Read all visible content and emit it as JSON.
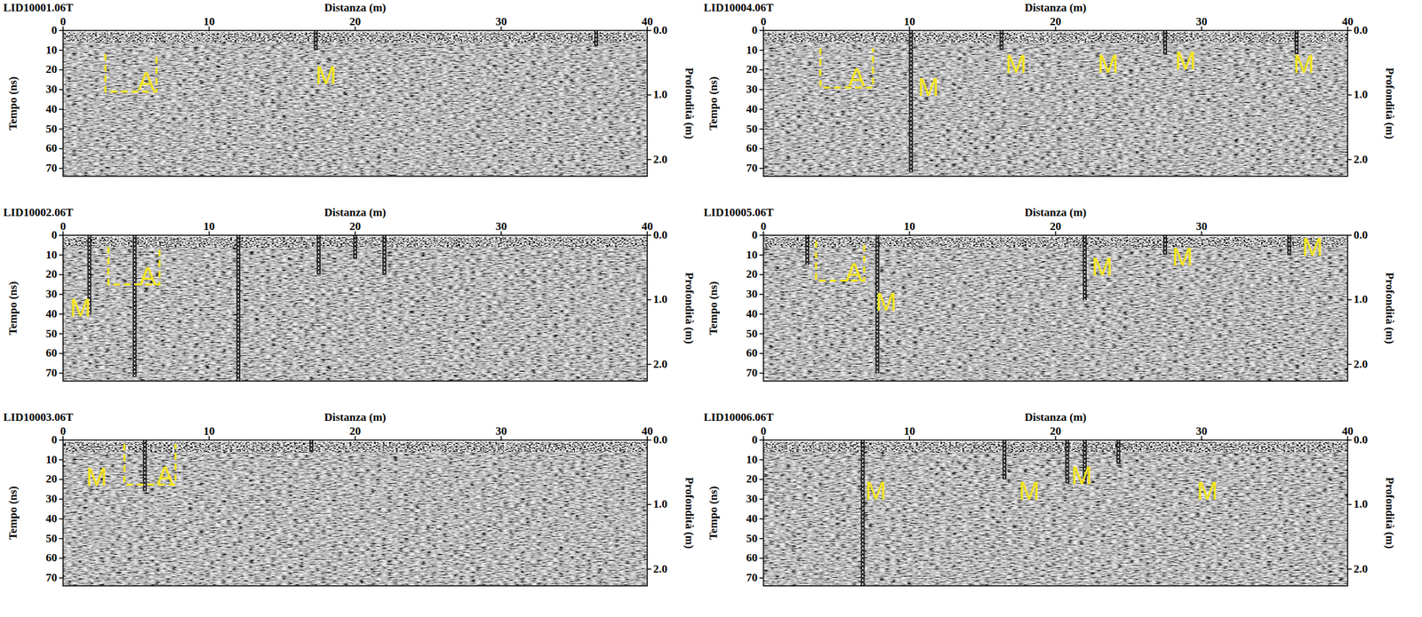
{
  "chart_data": [
    {
      "type": "radargram",
      "title": "LID10001.06T",
      "x_label": "Distanza (m)",
      "y_label": "Tempo (ns)",
      "y2_label": "Profondità (m)",
      "xlim": [
        0,
        40
      ],
      "xticks": [
        0,
        10,
        20,
        30,
        40
      ],
      "ylim": [
        0,
        74
      ],
      "yticks": [
        0,
        10,
        20,
        30,
        40,
        50,
        60,
        70
      ],
      "y2lim": [
        0,
        2.26
      ],
      "y2ticks": [
        {
          "value": 0,
          "label": "0.0"
        },
        {
          "value": 1,
          "label": "1.0"
        },
        {
          "value": 2,
          "label": "2.0"
        }
      ],
      "annotations": [
        {
          "text": "A",
          "x": 5.7,
          "y": 27,
          "box": [
            2.9,
            6.4,
            12,
            31
          ]
        },
        {
          "text": "M",
          "x": 18.0,
          "y": 24
        }
      ],
      "reflections": [
        {
          "x": 17.3,
          "y0": 0,
          "y1": 10
        },
        {
          "x": 36.5,
          "y0": 0,
          "y1": 8
        }
      ]
    },
    {
      "type": "radargram",
      "title": "LID10002.06T",
      "x_label": "Distanza (m)",
      "y_label": "Tempo (ns)",
      "y2_label": "Profondità (m)",
      "xlim": [
        0,
        40
      ],
      "xticks": [
        0,
        10,
        20,
        30,
        40
      ],
      "ylim": [
        0,
        74
      ],
      "yticks": [
        0,
        10,
        20,
        30,
        40,
        50,
        60,
        70
      ],
      "y2lim": [
        0,
        2.26
      ],
      "y2ticks": [
        {
          "value": 0,
          "label": "0.0"
        },
        {
          "value": 1,
          "label": "1.0"
        },
        {
          "value": 2,
          "label": "2.0"
        }
      ],
      "annotations": [
        {
          "text": "A",
          "x": 5.8,
          "y": 22,
          "box": [
            3.1,
            6.6,
            6,
            25
          ]
        },
        {
          "text": "M",
          "x": 1.2,
          "y": 38
        }
      ],
      "reflections": [
        {
          "x": 1.8,
          "y0": 0,
          "y1": 40
        },
        {
          "x": 4.9,
          "y0": 0,
          "y1": 72
        },
        {
          "x": 12.0,
          "y0": 0,
          "y1": 74
        },
        {
          "x": 17.5,
          "y0": 0,
          "y1": 20
        },
        {
          "x": 20.0,
          "y0": 0,
          "y1": 12
        },
        {
          "x": 22.0,
          "y0": 0,
          "y1": 20
        }
      ]
    },
    {
      "type": "radargram",
      "title": "LID10003.06T",
      "x_label": "Distanza (m)",
      "y_label": "Tempo (ns)",
      "y2_label": "Profondità (m)",
      "xlim": [
        0,
        40
      ],
      "xticks": [
        0,
        10,
        20,
        30,
        40
      ],
      "ylim": [
        0,
        74
      ],
      "yticks": [
        0,
        10,
        20,
        30,
        40,
        50,
        60,
        70
      ],
      "y2lim": [
        0,
        2.26
      ],
      "y2ticks": [
        {
          "value": 0,
          "label": "0.0"
        },
        {
          "value": 1,
          "label": "1.0"
        },
        {
          "value": 2,
          "label": "2.0"
        }
      ],
      "annotations": [
        {
          "text": "A",
          "x": 7.0,
          "y": 19,
          "box": [
            4.2,
            7.7,
            2,
            22.6
          ]
        },
        {
          "text": "M",
          "x": 2.3,
          "y": 20
        }
      ],
      "reflections": [
        {
          "x": 5.6,
          "y0": 0,
          "y1": 26
        },
        {
          "x": 17.0,
          "y0": 0,
          "y1": 6
        }
      ]
    },
    {
      "type": "radargram",
      "title": "LID10004.06T",
      "x_label": "Distanza (m)",
      "y_label": "Tempo (ns)",
      "y2_label": "Profondità (m)",
      "xlim": [
        0,
        40
      ],
      "xticks": [
        0,
        10,
        20,
        30,
        40
      ],
      "ylim": [
        0,
        74
      ],
      "yticks": [
        0,
        10,
        20,
        30,
        40,
        50,
        60,
        70
      ],
      "y2lim": [
        0,
        2.26
      ],
      "y2ticks": [
        {
          "value": 0,
          "label": "0.0"
        },
        {
          "value": 1,
          "label": "1.0"
        },
        {
          "value": 2,
          "label": "2.0"
        }
      ],
      "annotations": [
        {
          "text": "A",
          "x": 6.4,
          "y": 25,
          "box": [
            3.9,
            7.5,
            9,
            29
          ]
        },
        {
          "text": "M",
          "x": 11.3,
          "y": 30
        },
        {
          "text": "M",
          "x": 17.3,
          "y": 18
        },
        {
          "text": "M",
          "x": 23.6,
          "y": 18
        },
        {
          "text": "M",
          "x": 28.9,
          "y": 16.5
        },
        {
          "text": "M",
          "x": 37.0,
          "y": 18
        }
      ],
      "reflections": [
        {
          "x": 10.1,
          "y0": 0,
          "y1": 72
        },
        {
          "x": 16.3,
          "y0": 0,
          "y1": 10
        },
        {
          "x": 27.5,
          "y0": 0,
          "y1": 12
        },
        {
          "x": 36.5,
          "y0": 0,
          "y1": 12
        }
      ]
    },
    {
      "type": "radargram",
      "title": "LID10005.06T",
      "x_label": "Distanza (m)",
      "y_label": "Tempo (ns)",
      "y2_label": "Profondità (m)",
      "xlim": [
        0,
        40
      ],
      "xticks": [
        0,
        10,
        20,
        30
      ],
      "ylim": [
        0,
        74
      ],
      "yticks": [
        0,
        10,
        20,
        30,
        40,
        50,
        60,
        70
      ],
      "y2lim": [
        0,
        2.26
      ],
      "y2ticks": [
        {
          "value": 0,
          "label": "0.0"
        },
        {
          "value": 1,
          "label": "1.0"
        },
        {
          "value": 2,
          "label": "2.0"
        }
      ],
      "annotations": [
        {
          "text": "A",
          "x": 6.2,
          "y": 20,
          "box": [
            3.6,
            6.9,
            3,
            23
          ]
        },
        {
          "text": "M",
          "x": 8.4,
          "y": 35
        },
        {
          "text": "M",
          "x": 23.2,
          "y": 17
        },
        {
          "text": "M",
          "x": 28.7,
          "y": 12
        },
        {
          "text": "M",
          "x": 37.6,
          "y": 7
        }
      ],
      "reflections": [
        {
          "x": 3.0,
          "y0": 0,
          "y1": 15
        },
        {
          "x": 7.8,
          "y0": 0,
          "y1": 70
        },
        {
          "x": 22.0,
          "y0": 0,
          "y1": 33
        },
        {
          "x": 27.5,
          "y0": 0,
          "y1": 10
        },
        {
          "x": 36.0,
          "y0": 0,
          "y1": 10
        }
      ]
    },
    {
      "type": "radargram",
      "title": "LID10006.06T",
      "x_label": "Distanza (m)",
      "y_label": "Tempo (ns)",
      "y2_label": "Profondità (m)",
      "xlim": [
        0,
        40
      ],
      "xticks": [
        0,
        10,
        20,
        30,
        40
      ],
      "ylim": [
        0,
        74
      ],
      "yticks": [
        0,
        10,
        20,
        30,
        40,
        50,
        60,
        70
      ],
      "y2lim": [
        0,
        2.26
      ],
      "y2ticks": [
        {
          "value": 0,
          "label": "0.0"
        },
        {
          "value": 1,
          "label": "1.0"
        },
        {
          "value": 2,
          "label": "2.0"
        }
      ],
      "annotations": [
        {
          "text": "M",
          "x": 7.7,
          "y": 27
        },
        {
          "text": "M",
          "x": 18.2,
          "y": 27
        },
        {
          "text": "M",
          "x": 21.8,
          "y": 19
        },
        {
          "text": "M",
          "x": 30.4,
          "y": 27
        }
      ],
      "reflections": [
        {
          "x": 6.8,
          "y0": 0,
          "y1": 74
        },
        {
          "x": 16.5,
          "y0": 0,
          "y1": 20
        },
        {
          "x": 20.8,
          "y0": 0,
          "y1": 22
        },
        {
          "x": 22.0,
          "y0": 0,
          "y1": 22
        },
        {
          "x": 24.3,
          "y0": 0,
          "y1": 12
        }
      ]
    }
  ]
}
